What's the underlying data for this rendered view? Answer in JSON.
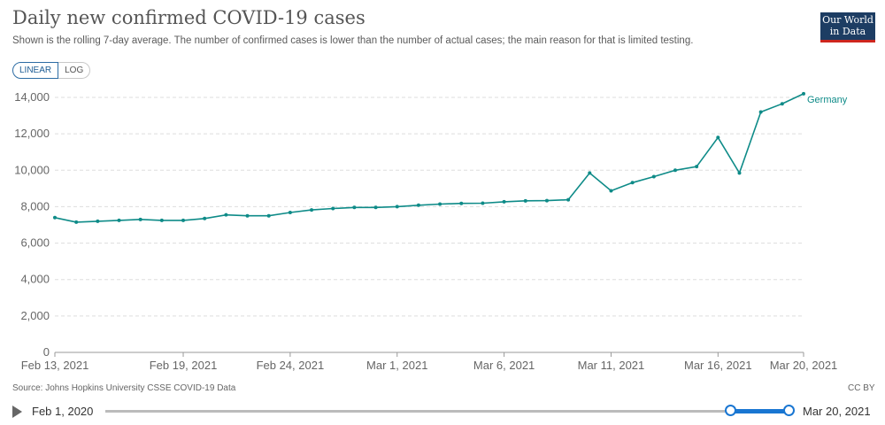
{
  "header": {
    "title": "Daily new confirmed COVID-19 cases",
    "subtitle": "Shown is the rolling 7-day average. The number of confirmed cases is lower than the number of actual cases; the main reason for that is limited testing."
  },
  "logo": {
    "line1": "Our World",
    "line2": "in Data"
  },
  "scale_toggle": {
    "linear_label": "LINEAR",
    "log_label": "LOG",
    "selected": "linear"
  },
  "footer": {
    "source": "Source: Johns Hopkins University CSSE COVID-19 Data",
    "license": "CC BY"
  },
  "timeline": {
    "start_label": "Feb 1, 2020",
    "end_label": "Mar 20, 2021",
    "play_icon": "play-icon"
  },
  "colors": {
    "series": "#0e8b88",
    "grid": "#dddddd",
    "brand": "#1d3d63",
    "brand_accent": "#ce261e",
    "slider": "#1976d2"
  },
  "chart_data": {
    "type": "line",
    "title": "Daily new confirmed COVID-19 cases",
    "ylim": [
      0,
      14000
    ],
    "y_ticks": [
      0,
      2000,
      4000,
      6000,
      8000,
      10000,
      12000,
      14000
    ],
    "y_tick_labels": [
      "0",
      "2,000",
      "4,000",
      "6,000",
      "8,000",
      "10,000",
      "12,000",
      "14,000"
    ],
    "x_ticks": [
      "2021-02-13",
      "2021-02-19",
      "2021-02-24",
      "2021-03-01",
      "2021-03-06",
      "2021-03-11",
      "2021-03-16",
      "2021-03-20"
    ],
    "x_tick_labels": [
      "Feb 13, 2021",
      "Feb 19, 2021",
      "Feb 24, 2021",
      "Mar 1, 2021",
      "Mar 6, 2021",
      "Mar 11, 2021",
      "Mar 16, 2021",
      "Mar 20, 2021"
    ],
    "grid": true,
    "series": [
      {
        "name": "Germany",
        "x": [
          "2021-02-13",
          "2021-02-14",
          "2021-02-15",
          "2021-02-16",
          "2021-02-17",
          "2021-02-18",
          "2021-02-19",
          "2021-02-20",
          "2021-02-21",
          "2021-02-22",
          "2021-02-23",
          "2021-02-24",
          "2021-02-25",
          "2021-02-26",
          "2021-02-27",
          "2021-02-28",
          "2021-03-01",
          "2021-03-02",
          "2021-03-03",
          "2021-03-04",
          "2021-03-05",
          "2021-03-06",
          "2021-03-07",
          "2021-03-08",
          "2021-03-09",
          "2021-03-10",
          "2021-03-11",
          "2021-03-12",
          "2021-03-13",
          "2021-03-14",
          "2021-03-15",
          "2021-03-16",
          "2021-03-17",
          "2021-03-18",
          "2021-03-19",
          "2021-03-20"
        ],
        "values": [
          7400,
          7150,
          7200,
          7250,
          7300,
          7250,
          7250,
          7350,
          7550,
          7500,
          7500,
          7680,
          7820,
          7900,
          7960,
          7960,
          8000,
          8080,
          8140,
          8180,
          8190,
          8270,
          8320,
          8330,
          8380,
          9850,
          8870,
          9320,
          9650,
          10000,
          10200,
          11800,
          9850,
          13200,
          13650,
          14200
        ]
      }
    ]
  }
}
